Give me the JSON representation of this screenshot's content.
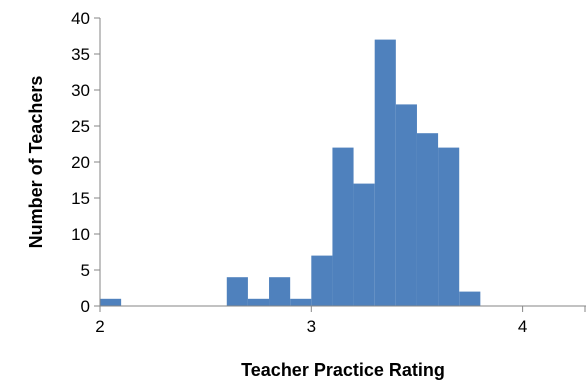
{
  "chart_data": {
    "type": "bar",
    "subtype": "histogram",
    "title": "",
    "xlabel": "Teacher Practice Rating",
    "ylabel": "Number of Teachers",
    "xlim": [
      2,
      4.3
    ],
    "ylim": [
      0,
      40
    ],
    "bin_width": 0.1,
    "x_ticks": [
      2,
      3,
      4
    ],
    "y_ticks": [
      0,
      5,
      10,
      15,
      20,
      25,
      30,
      35,
      40
    ],
    "grid": false,
    "legend": "none",
    "bar_color": "#4f81bd",
    "bins": [
      {
        "start": 2.0,
        "count": 1
      },
      {
        "start": 2.1,
        "count": 0
      },
      {
        "start": 2.2,
        "count": 0
      },
      {
        "start": 2.3,
        "count": 0
      },
      {
        "start": 2.4,
        "count": 0
      },
      {
        "start": 2.5,
        "count": 0
      },
      {
        "start": 2.6,
        "count": 4
      },
      {
        "start": 2.7,
        "count": 1
      },
      {
        "start": 2.8,
        "count": 4
      },
      {
        "start": 2.9,
        "count": 1
      },
      {
        "start": 3.0,
        "count": 7
      },
      {
        "start": 3.1,
        "count": 22
      },
      {
        "start": 3.2,
        "count": 17
      },
      {
        "start": 3.3,
        "count": 37
      },
      {
        "start": 3.4,
        "count": 28
      },
      {
        "start": 3.5,
        "count": 24
      },
      {
        "start": 3.6,
        "count": 22
      },
      {
        "start": 3.7,
        "count": 2
      },
      {
        "start": 3.8,
        "count": 0
      },
      {
        "start": 3.9,
        "count": 0
      },
      {
        "start": 4.0,
        "count": 0
      },
      {
        "start": 4.1,
        "count": 0
      },
      {
        "start": 4.2,
        "count": 0
      }
    ]
  }
}
